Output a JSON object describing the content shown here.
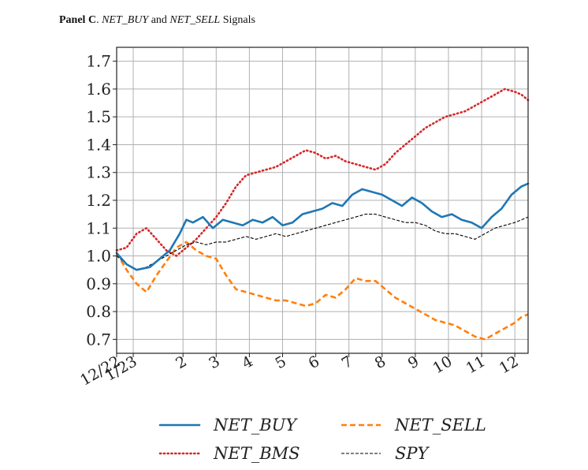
{
  "caption": {
    "panel": "Panel C",
    "sep": ". ",
    "buy": "NET_BUY",
    "and": " and ",
    "sell": "NET_SELL",
    "rest": " Signals"
  },
  "chart_data": {
    "type": "line",
    "xlim": [
      0,
      12.4
    ],
    "ylim": [
      0.65,
      1.75
    ],
    "grid": true,
    "xticks": [
      {
        "x": 0,
        "label": "12/22"
      },
      {
        "x": 0.5,
        "label": "1/23"
      },
      {
        "x": 2,
        "label": "2"
      },
      {
        "x": 3,
        "label": "3"
      },
      {
        "x": 4,
        "label": "4"
      },
      {
        "x": 5,
        "label": "5"
      },
      {
        "x": 6,
        "label": "6"
      },
      {
        "x": 7,
        "label": "7"
      },
      {
        "x": 8,
        "label": "8"
      },
      {
        "x": 9,
        "label": "9"
      },
      {
        "x": 10,
        "label": "10"
      },
      {
        "x": 11,
        "label": "11"
      },
      {
        "x": 12,
        "label": "12"
      }
    ],
    "yticks": [
      0.7,
      0.8,
      0.9,
      1.0,
      1.1,
      1.2,
      1.3,
      1.4,
      1.5,
      1.6,
      1.7
    ],
    "ytick_labels": [
      "0.7",
      "0.8",
      "0.9",
      "1.0",
      "1.1",
      "1.2",
      "1.3",
      "1.4",
      "1.5",
      "1.6",
      "1.7"
    ],
    "legend": "bottom",
    "series": [
      {
        "name": "NET_BUY",
        "color": "#1f77b4",
        "style": "solid",
        "x": [
          0,
          0.3,
          0.6,
          1.0,
          1.3,
          1.6,
          1.9,
          2.1,
          2.3,
          2.6,
          2.9,
          3.2,
          3.5,
          3.8,
          4.1,
          4.4,
          4.7,
          5.0,
          5.3,
          5.6,
          5.9,
          6.2,
          6.5,
          6.8,
          7.1,
          7.4,
          7.7,
          8.0,
          8.3,
          8.6,
          8.9,
          9.2,
          9.5,
          9.8,
          10.1,
          10.4,
          10.7,
          11.0,
          11.3,
          11.6,
          11.9,
          12.2,
          12.4
        ],
        "y": [
          1.01,
          0.97,
          0.95,
          0.96,
          0.99,
          1.02,
          1.08,
          1.13,
          1.12,
          1.14,
          1.1,
          1.13,
          1.12,
          1.11,
          1.13,
          1.12,
          1.14,
          1.11,
          1.12,
          1.15,
          1.16,
          1.17,
          1.19,
          1.18,
          1.22,
          1.24,
          1.23,
          1.22,
          1.2,
          1.18,
          1.21,
          1.19,
          1.16,
          1.14,
          1.15,
          1.13,
          1.12,
          1.1,
          1.14,
          1.17,
          1.22,
          1.25,
          1.26
        ]
      },
      {
        "name": "NET_BMS",
        "color": "#d62728",
        "style": "dotted",
        "x": [
          0,
          0.3,
          0.6,
          0.9,
          1.2,
          1.5,
          1.8,
          2.1,
          2.4,
          2.7,
          3.0,
          3.3,
          3.6,
          3.9,
          4.2,
          4.5,
          4.8,
          5.1,
          5.4,
          5.7,
          6.0,
          6.3,
          6.6,
          6.9,
          7.2,
          7.5,
          7.8,
          8.1,
          8.4,
          8.7,
          9.0,
          9.3,
          9.6,
          9.9,
          10.2,
          10.5,
          10.8,
          11.1,
          11.4,
          11.7,
          12.0,
          12.2,
          12.4
        ],
        "y": [
          1.02,
          1.03,
          1.08,
          1.1,
          1.06,
          1.02,
          1.0,
          1.03,
          1.06,
          1.1,
          1.14,
          1.19,
          1.25,
          1.29,
          1.3,
          1.31,
          1.32,
          1.34,
          1.36,
          1.38,
          1.37,
          1.35,
          1.36,
          1.34,
          1.33,
          1.32,
          1.31,
          1.33,
          1.37,
          1.4,
          1.43,
          1.46,
          1.48,
          1.5,
          1.51,
          1.52,
          1.54,
          1.56,
          1.58,
          1.6,
          1.59,
          1.58,
          1.56
        ]
      },
      {
        "name": "NET_SELL",
        "color": "#ff7f0e",
        "style": "dashed",
        "x": [
          0,
          0.3,
          0.6,
          0.9,
          1.2,
          1.5,
          1.8,
          2.1,
          2.4,
          2.7,
          3.0,
          3.3,
          3.6,
          3.9,
          4.2,
          4.5,
          4.8,
          5.1,
          5.4,
          5.7,
          6.0,
          6.3,
          6.6,
          6.9,
          7.2,
          7.5,
          7.8,
          8.1,
          8.4,
          8.7,
          9.0,
          9.3,
          9.6,
          9.9,
          10.2,
          10.5,
          10.8,
          11.1,
          11.4,
          11.7,
          12.0,
          12.2,
          12.4
        ],
        "y": [
          1.01,
          0.95,
          0.9,
          0.87,
          0.93,
          0.98,
          1.03,
          1.05,
          1.02,
          1.0,
          0.99,
          0.93,
          0.88,
          0.87,
          0.86,
          0.85,
          0.84,
          0.84,
          0.83,
          0.82,
          0.83,
          0.86,
          0.85,
          0.88,
          0.92,
          0.91,
          0.91,
          0.88,
          0.85,
          0.83,
          0.81,
          0.79,
          0.77,
          0.76,
          0.75,
          0.73,
          0.71,
          0.7,
          0.72,
          0.74,
          0.76,
          0.78,
          0.79
        ]
      },
      {
        "name": "SPY",
        "color": "#000000",
        "style": "dashed-thin",
        "x": [
          0,
          0.3,
          0.6,
          0.9,
          1.2,
          1.5,
          1.8,
          2.1,
          2.4,
          2.7,
          3.0,
          3.3,
          3.6,
          3.9,
          4.2,
          4.5,
          4.8,
          5.1,
          5.4,
          5.7,
          6.0,
          6.3,
          6.6,
          6.9,
          7.2,
          7.5,
          7.8,
          8.1,
          8.4,
          8.7,
          9.0,
          9.3,
          9.6,
          9.9,
          10.2,
          10.5,
          10.8,
          11.1,
          11.4,
          11.7,
          12.0,
          12.2,
          12.4
        ],
        "y": [
          1.0,
          0.97,
          0.95,
          0.96,
          0.98,
          1.0,
          1.02,
          1.04,
          1.05,
          1.04,
          1.05,
          1.05,
          1.06,
          1.07,
          1.06,
          1.07,
          1.08,
          1.07,
          1.08,
          1.09,
          1.1,
          1.11,
          1.12,
          1.13,
          1.14,
          1.15,
          1.15,
          1.14,
          1.13,
          1.12,
          1.12,
          1.11,
          1.09,
          1.08,
          1.08,
          1.07,
          1.06,
          1.08,
          1.1,
          1.11,
          1.12,
          1.13,
          1.14
        ]
      }
    ]
  }
}
